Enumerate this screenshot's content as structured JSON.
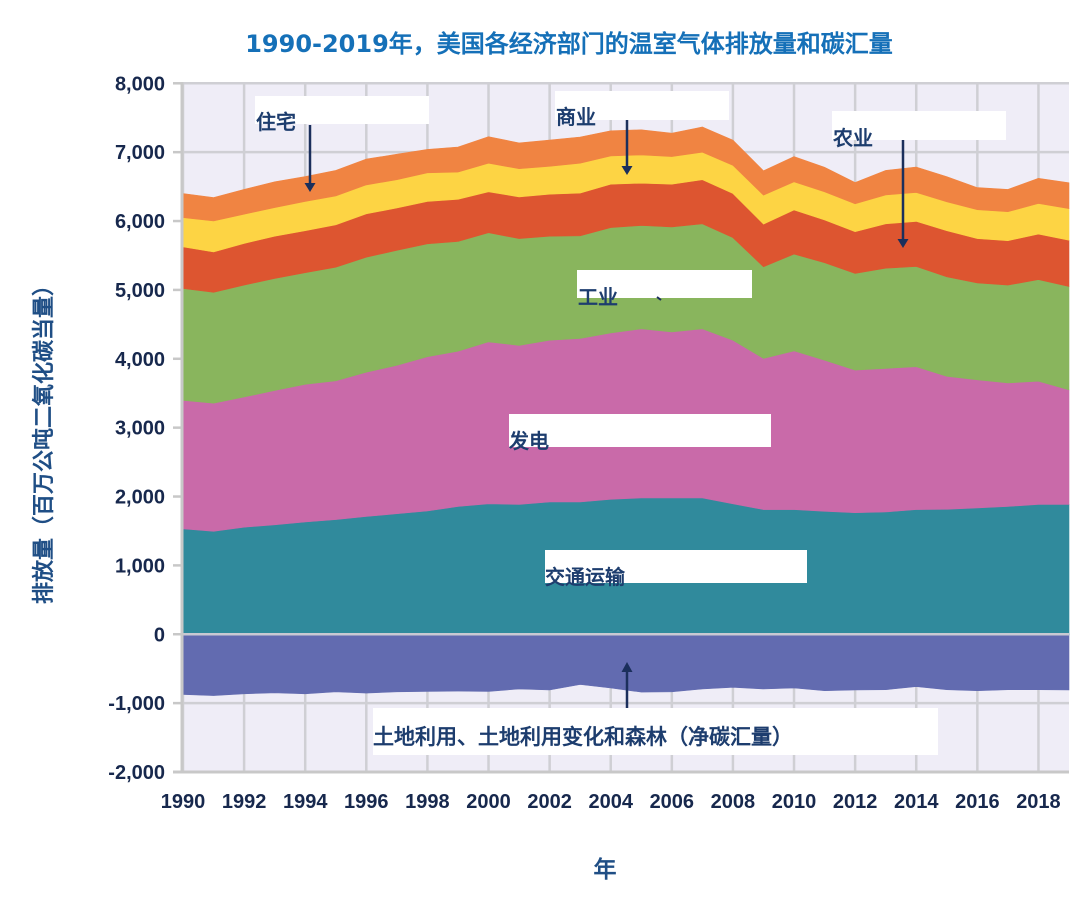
{
  "chart_data": {
    "type": "area",
    "stacked": true,
    "title": "1990-2019年，美国各经济部门的温室气体排放量和碳汇量",
    "xlabel": "年",
    "ylabel": "排放量（百万公吨二氧化碳当量）",
    "xlim": [
      1990,
      2019
    ],
    "ylim": [
      -2000,
      8000
    ],
    "grid": true,
    "legend": "none (inline labels with arrows)",
    "background_color": "#efedf7",
    "x": [
      1990,
      1991,
      1992,
      1993,
      1994,
      1995,
      1996,
      1997,
      1998,
      1999,
      2000,
      2001,
      2002,
      2003,
      2004,
      2005,
      2006,
      2007,
      2008,
      2009,
      2010,
      2011,
      2012,
      2013,
      2014,
      2015,
      2016,
      2017,
      2018,
      2019
    ],
    "y_ticks": [
      {
        "value": 8000,
        "label": "8,000"
      },
      {
        "value": 7000,
        "label": "7,000"
      },
      {
        "value": 6000,
        "label": "6,000"
      },
      {
        "value": 5000,
        "label": "5,000"
      },
      {
        "value": 4000,
        "label": "4,000"
      },
      {
        "value": 3000,
        "label": "3,000"
      },
      {
        "value": 2000,
        "label": "2,000"
      },
      {
        "value": 1000,
        "label": "1,000"
      },
      {
        "value": 0,
        "label": "0"
      },
      {
        "value": -1000,
        "label": "-1,000"
      },
      {
        "value": -2000,
        "label": "-2,000"
      }
    ],
    "x_ticks": [
      {
        "value": 1990,
        "label": "1990"
      },
      {
        "value": 1992,
        "label": "1992"
      },
      {
        "value": 1994,
        "label": "1994"
      },
      {
        "value": 1996,
        "label": "1996"
      },
      {
        "value": 1998,
        "label": "1998"
      },
      {
        "value": 2000,
        "label": "2000"
      },
      {
        "value": 2002,
        "label": "2002"
      },
      {
        "value": 2004,
        "label": "2004"
      },
      {
        "value": 2006,
        "label": "2006"
      },
      {
        "value": 2008,
        "label": "2008"
      },
      {
        "value": 2010,
        "label": "2010"
      },
      {
        "value": 2012,
        "label": "2012"
      },
      {
        "value": 2014,
        "label": "2014"
      },
      {
        "value": 2016,
        "label": "2016"
      },
      {
        "value": 2018,
        "label": "2018"
      }
    ],
    "series": [
      {
        "key": "transportation",
        "name": "交通运输",
        "color": "#308a9c",
        "values": [
          1530,
          1495,
          1555,
          1590,
          1630,
          1665,
          1710,
          1750,
          1790,
          1855,
          1895,
          1885,
          1920,
          1920,
          1960,
          1980,
          1980,
          1980,
          1895,
          1810,
          1810,
          1785,
          1765,
          1775,
          1810,
          1815,
          1835,
          1855,
          1885,
          1885
        ]
      },
      {
        "key": "electricity",
        "name": "发电",
        "color": "#c96aa9",
        "values": [
          1865,
          1860,
          1890,
          1950,
          2000,
          2015,
          2095,
          2155,
          2240,
          2255,
          2350,
          2310,
          2350,
          2375,
          2415,
          2455,
          2410,
          2455,
          2375,
          2195,
          2305,
          2195,
          2070,
          2085,
          2075,
          1930,
          1860,
          1795,
          1790,
          1665
        ]
      },
      {
        "key": "industry",
        "name": "工业",
        "color": "#89b55d",
        "values": [
          1625,
          1610,
          1625,
          1625,
          1620,
          1650,
          1670,
          1670,
          1640,
          1595,
          1585,
          1550,
          1510,
          1490,
          1530,
          1500,
          1525,
          1525,
          1490,
          1330,
          1405,
          1415,
          1405,
          1455,
          1455,
          1445,
          1405,
          1420,
          1475,
          1500
        ]
      },
      {
        "key": "agriculture",
        "name": "农业",
        "color": "#dd5530",
        "values": [
          605,
          585,
          605,
          615,
          610,
          615,
          630,
          615,
          615,
          610,
          595,
          605,
          610,
          620,
          630,
          615,
          620,
          640,
          640,
          620,
          640,
          620,
          605,
          645,
          655,
          670,
          645,
          645,
          660,
          670
        ]
      },
      {
        "key": "commercial",
        "name": "商业",
        "color": "#fdd444",
        "values": [
          425,
          450,
          425,
          415,
          425,
          420,
          420,
          410,
          415,
          395,
          415,
          410,
          405,
          435,
          410,
          410,
          400,
          400,
          410,
          420,
          410,
          410,
          405,
          420,
          420,
          420,
          420,
          420,
          445,
          460
        ]
      },
      {
        "key": "residential",
        "name": "住宅",
        "color": "#f08442",
        "values": [
          350,
          340,
          360,
          375,
          360,
          370,
          375,
          370,
          340,
          365,
          385,
          375,
          380,
          380,
          365,
          365,
          340,
          365,
          365,
          355,
          365,
          355,
          310,
          355,
          370,
          365,
          320,
          325,
          365,
          375
        ]
      },
      {
        "key": "lulucf",
        "name": "土地利用、土地利用变化和森林（净碳汇量）",
        "color": "#626bb0",
        "values": [
          -875,
          -890,
          -865,
          -850,
          -865,
          -835,
          -855,
          -835,
          -830,
          -825,
          -830,
          -795,
          -810,
          -730,
          -780,
          -840,
          -835,
          -795,
          -770,
          -795,
          -780,
          -820,
          -810,
          -805,
          -760,
          -805,
          -820,
          -805,
          -805,
          -810
        ]
      }
    ]
  }
}
